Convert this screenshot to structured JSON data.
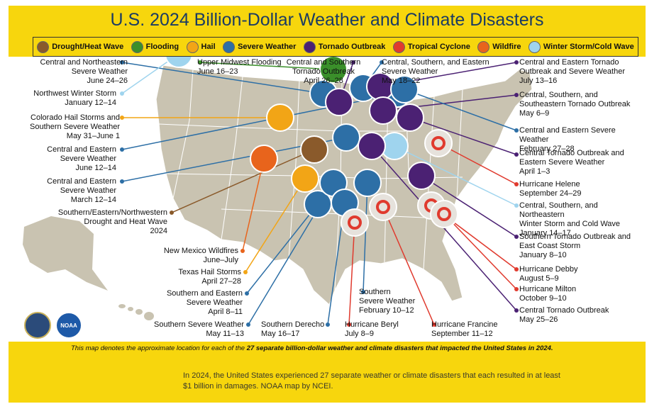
{
  "title": "U.S. 2024 Billion-Dollar Weather and Climate Disasters",
  "legend": [
    {
      "label": "Drought/Heat Wave",
      "icon": "drought-icon",
      "color": "#8a5a2b"
    },
    {
      "label": "Flooding",
      "icon": "flooding-icon",
      "color": "#3a8f2a"
    },
    {
      "label": "Hail",
      "icon": "hail-icon",
      "color": "#f2a516"
    },
    {
      "label": "Severe Weather",
      "icon": "severe-weather-icon",
      "color": "#2d6fa6"
    },
    {
      "label": "Tornado Outbreak",
      "icon": "tornado-icon",
      "color": "#4b2173"
    },
    {
      "label": "Tropical Cyclone",
      "icon": "tropical-cyclone-icon",
      "color": "#e03a2e"
    },
    {
      "label": "Wildfire",
      "icon": "wildfire-icon",
      "color": "#e8641c"
    },
    {
      "label": "Winter Storm/Cold Wave",
      "icon": "winter-storm-icon",
      "color": "#9fd4ee"
    }
  ],
  "events": {
    "ne_severe": {
      "name": "Central and Northeastern\nSevere Weather",
      "dates": "June 24–26",
      "type": "severe-weather"
    },
    "nw_winter": {
      "name": "Northwest Winter Storm",
      "dates": "January 12–14",
      "type": "winter-storm"
    },
    "co_hail": {
      "name": "Colorado Hail Storms and\nSouthern Severe Weather",
      "dates": "May 31–June 1",
      "type": "hail"
    },
    "ce_june": {
      "name": "Central and Eastern\nSevere Weather",
      "dates": "June 12–14",
      "type": "severe-weather"
    },
    "ce_march": {
      "name": "Central and Eastern\nSevere Weather",
      "dates": "March 12–14",
      "type": "severe-weather"
    },
    "drought": {
      "name": "Southern/Eastern/Northwestern\nDrought and Heat Wave",
      "dates": "2024",
      "type": "drought"
    },
    "nm_fire": {
      "name": "New Mexico Wildfires",
      "dates": "June–July",
      "type": "wildfire"
    },
    "tx_hail": {
      "name": "Texas Hail Storms",
      "dates": "April 27–28",
      "type": "hail"
    },
    "se_severe": {
      "name": "Southern and Eastern\nSevere Weather",
      "dates": "April 8–11",
      "type": "severe-weather"
    },
    "s_severe": {
      "name": "Southern Severe Weather",
      "dates": "May 11–13",
      "type": "severe-weather"
    },
    "derecho": {
      "name": "Southern Derecho",
      "dates": "May 16–17",
      "type": "severe-weather"
    },
    "beryl": {
      "name": "Hurricane Beryl",
      "dates": "July 8–9",
      "type": "tropical-cyclone"
    },
    "se_feb": {
      "name": "Southern\nSevere Weather",
      "dates": "February 10–12",
      "type": "severe-weather"
    },
    "francine": {
      "name": "Hurricane Francine",
      "dates": "September 11–12",
      "type": "tropical-cyclone"
    },
    "mw_flood": {
      "name": "Upper Midwest Flooding",
      "dates": "June 16–23",
      "type": "flooding"
    },
    "cs_tornado": {
      "name": "Central and Southern\nTornado Outbreak",
      "dates": "April 26–28",
      "type": "tornado"
    },
    "cse_severe": {
      "name": "Central, Southern, and Eastern\nSevere Weather",
      "dates": "May 18–22",
      "type": "severe-weather"
    },
    "ce_tornado": {
      "name": "Central and Eastern Tornado\nOutbreak and Severe Weather",
      "dates": "July 13–16",
      "type": "tornado"
    },
    "css_tornado": {
      "name": "Central, Southern, and\nSoutheastern Tornado Outbreak",
      "dates": "May 6–9",
      "type": "tornado"
    },
    "ce_feb": {
      "name": "Central and Eastern Severe Weather",
      "dates": "February 27–28",
      "type": "severe-weather"
    },
    "c_tornado_apr": {
      "name": "Central Tornado Outbreak and\nEastern Severe Weather",
      "dates": "April 1–3",
      "type": "tornado"
    },
    "helene": {
      "name": "Hurricane Helene",
      "dates": "September 24–29",
      "type": "tropical-cyclone"
    },
    "csn_winter": {
      "name": "Central, Southern, and Northeastern\nWinter Storm and Cold Wave",
      "dates": "January 14–17",
      "type": "winter-storm"
    },
    "s_tornado_jan": {
      "name": "Southern Tornado Outbreak and\nEast Coast Storm",
      "dates": "January 8–10",
      "type": "tornado"
    },
    "debby": {
      "name": "Hurricane Debby",
      "dates": "August 5–9",
      "type": "tropical-cyclone"
    },
    "milton": {
      "name": "Hurricane Milton",
      "dates": "October 9–10",
      "type": "tropical-cyclone"
    },
    "c_tornado_may": {
      "name": "Central Tornado Outbreak",
      "dates": "May 25–26",
      "type": "tornado"
    }
  },
  "note": {
    "prefix": "This map denotes the approximate location for each of the ",
    "bold": "27 separate billion-dollar weather and climate disasters that impacted the United States in 2024.",
    "suffix": ""
  },
  "caption": "In 2024, the United States experienced 27 separate weather or climate disasters that each resulted in at least $1 billion in damages. NOAA map by NCEI.",
  "seals": {
    "doc": "seal-doc",
    "noaa": "NOAA"
  }
}
